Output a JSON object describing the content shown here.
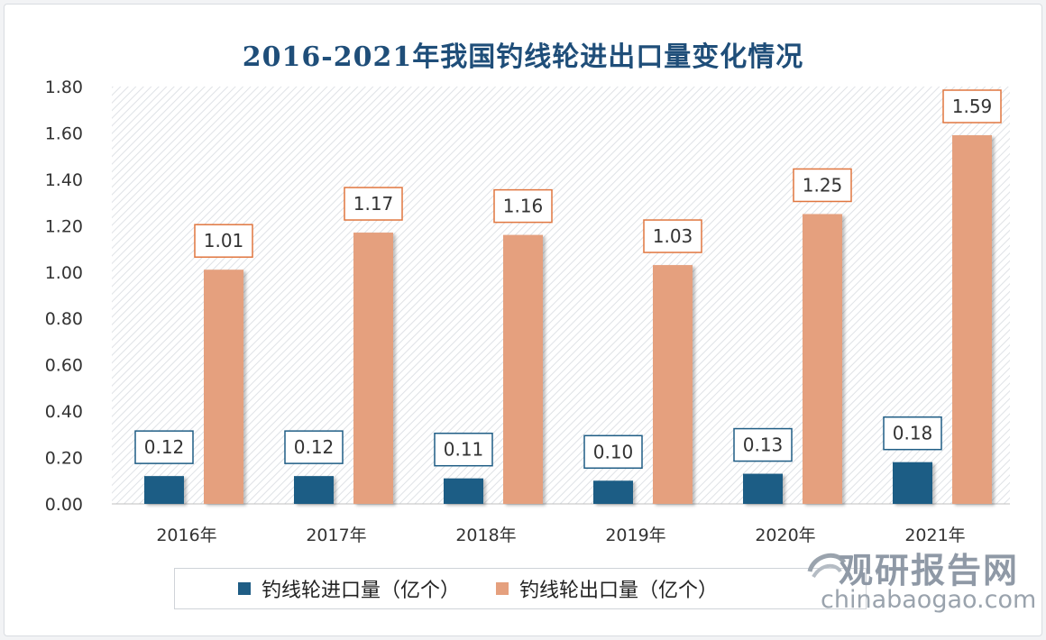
{
  "colors": {
    "import_bar": "#1f5d85",
    "export_bar": "#e5a07e",
    "title": "#1f4e79",
    "label_border_import": "#1f5d85",
    "label_border_export": "#e0763f"
  },
  "chart_data": {
    "type": "bar",
    "title": "2016-2021年我国钓线轮进出口量变化情况",
    "categories": [
      "2016年",
      "2017年",
      "2018年",
      "2019年",
      "2020年",
      "2021年"
    ],
    "series": [
      {
        "name": "钓线轮进口量（亿个）",
        "values": [
          0.12,
          0.12,
          0.11,
          0.1,
          0.13,
          0.18
        ]
      },
      {
        "name": "钓线轮出口量（亿个）",
        "values": [
          1.01,
          1.17,
          1.16,
          1.03,
          1.25,
          1.59
        ]
      }
    ],
    "ylim": [
      0,
      1.8
    ],
    "yticks": [
      "0.00",
      "0.20",
      "0.40",
      "0.60",
      "0.80",
      "1.00",
      "1.20",
      "1.40",
      "1.60",
      "1.80"
    ],
    "legend_position": "bottom",
    "grid": false
  },
  "watermark": {
    "brand": "观研报告网",
    "url": "chinabaogao.com",
    "logo_icon": "swirl-logo-icon"
  }
}
